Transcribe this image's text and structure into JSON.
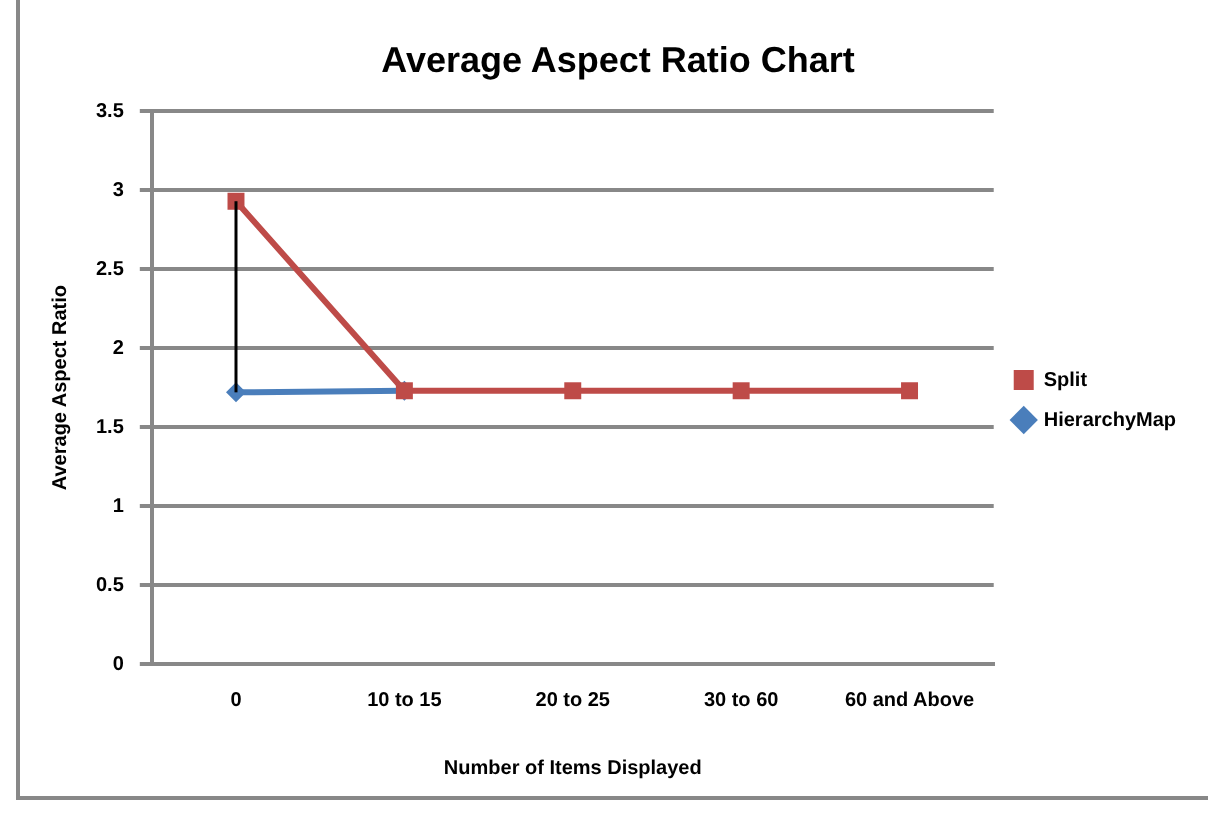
{
  "chart_data": {
    "type": "line",
    "title": "Average Aspect Ratio Chart",
    "xlabel": "Number of Items Displayed",
    "ylabel": "Average Aspect Ratio",
    "categories": [
      "0",
      "10 to 15",
      "20 to 25",
      "30 to 60",
      "60 and Above"
    ],
    "series": [
      {
        "name": "HierarchyMap",
        "color": "#4a7ebb",
        "values": [
          1.72,
          1.73,
          null,
          null,
          null
        ],
        "marker": "diamond",
        "errors": [
          [
            1.72,
            2.93
          ],
          null,
          null,
          null,
          null
        ]
      },
      {
        "name": "Split",
        "color": "#be4b48",
        "values": [
          2.93,
          1.73,
          1.73,
          1.73,
          1.73
        ],
        "marker": "square"
      }
    ],
    "ylim": [
      0,
      3.5
    ],
    "yticks": [
      0,
      0.5,
      1,
      1.5,
      2,
      2.5,
      3,
      3.5
    ],
    "grid": "y",
    "legend": "right"
  }
}
